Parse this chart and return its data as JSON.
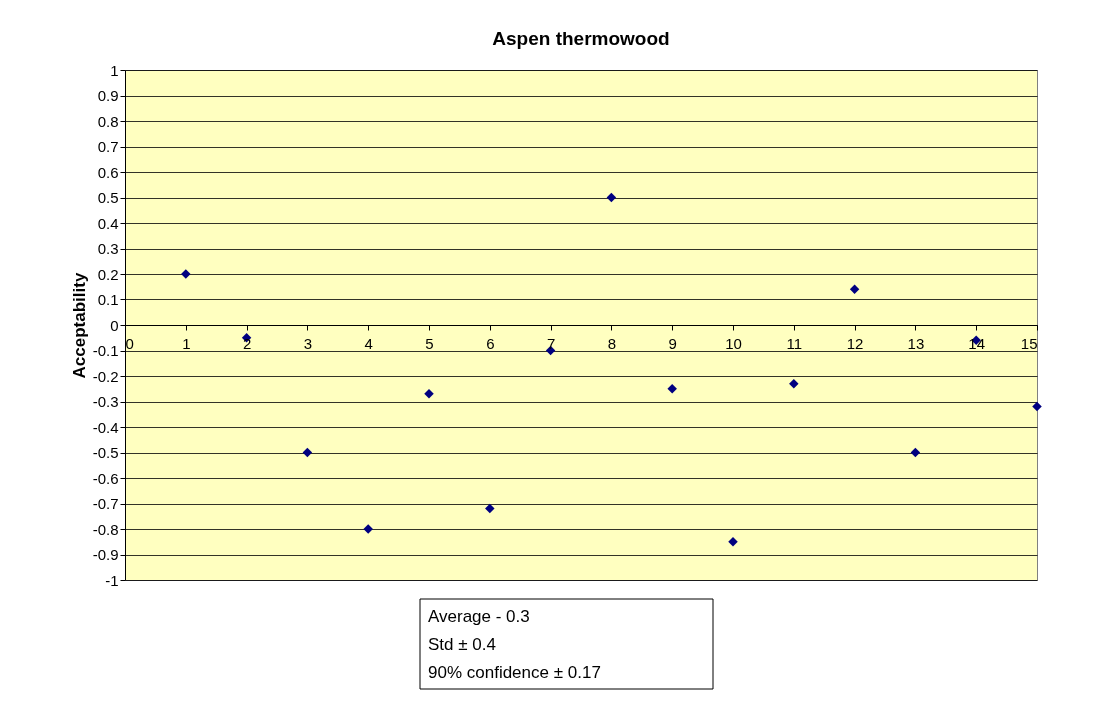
{
  "chart_data": {
    "type": "scatter",
    "title": "Aspen thermowood",
    "ylabel": "Acceptability",
    "x": [
      1,
      2,
      3,
      4,
      5,
      6,
      7,
      8,
      9,
      10,
      11,
      12,
      13,
      14,
      15
    ],
    "series": [
      {
        "color": "#000080",
        "values": [
          0.2,
          -0.05,
          -0.5,
          -0.8,
          -0.27,
          -0.72,
          -0.1,
          0.5,
          -0.25,
          -0.85,
          -0.23,
          0.14,
          -0.5,
          -0.06,
          -0.32
        ]
      }
    ],
    "xlim": [
      0,
      15
    ],
    "xticks": [
      0,
      1,
      2,
      3,
      4,
      5,
      6,
      7,
      8,
      9,
      10,
      11,
      12,
      13,
      14,
      15
    ],
    "ylim": [
      -1,
      1
    ],
    "yticks": [
      -1,
      -0.9,
      -0.8,
      -0.7,
      -0.6,
      -0.5,
      -0.4,
      -0.3,
      -0.2,
      -0.1,
      0,
      0.1,
      0.2,
      0.3,
      0.4,
      0.5,
      0.6,
      0.7,
      0.8,
      0.9,
      1
    ],
    "grid": "y",
    "marker": "diamond",
    "legend": false,
    "annotations": [
      "Average - 0.3",
      "Std ± 0.4",
      "90% confidence ± 0.17"
    ]
  }
}
